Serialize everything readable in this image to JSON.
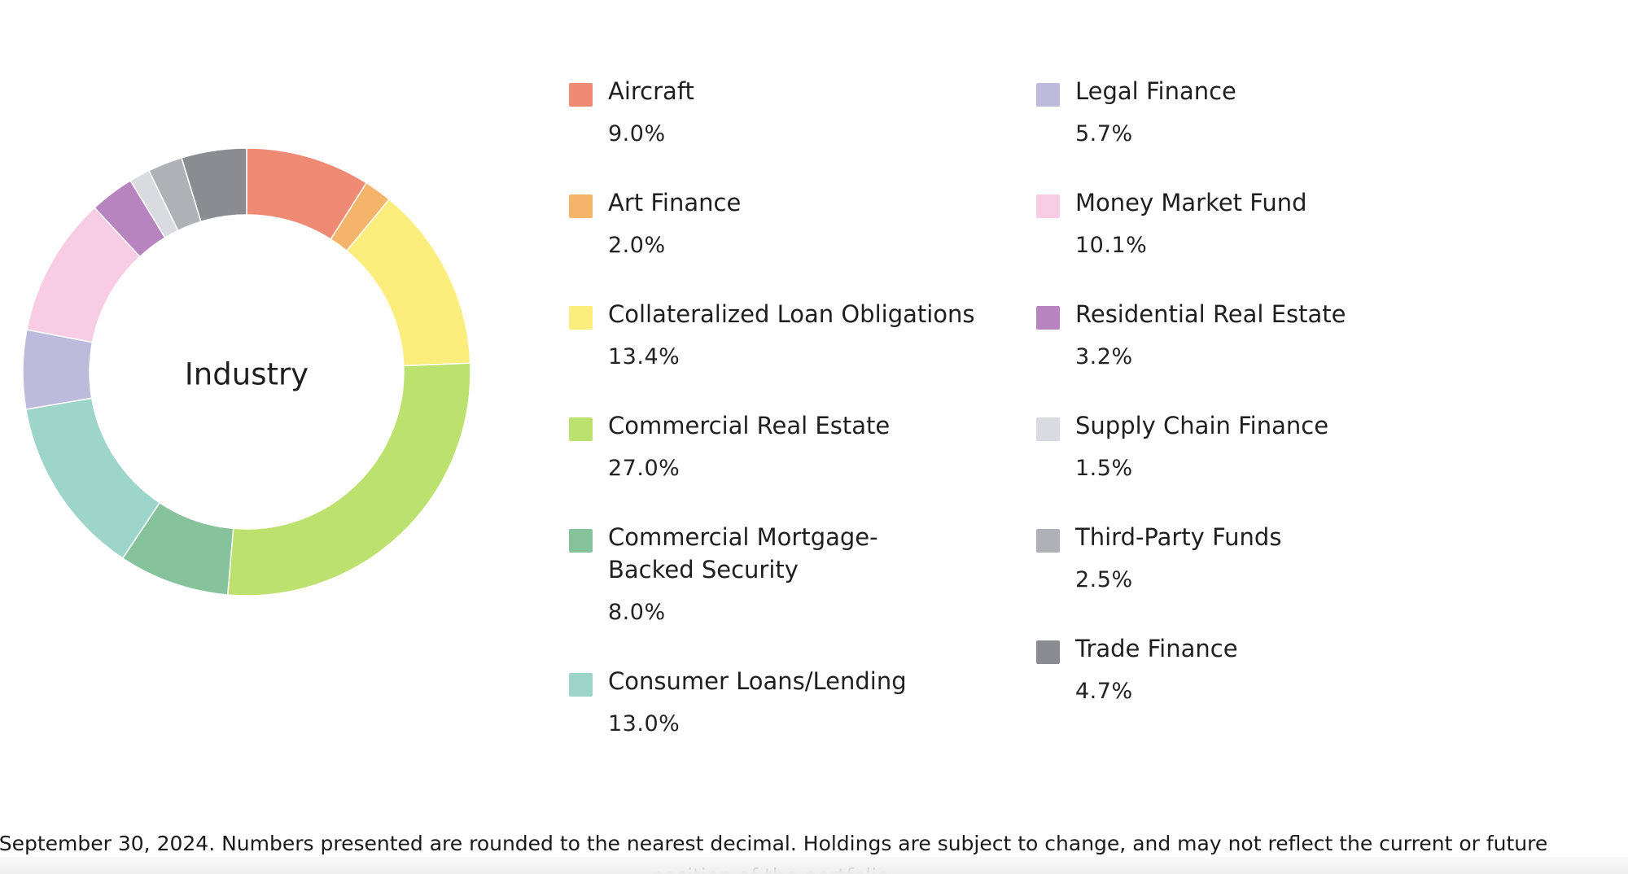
{
  "chart_data": {
    "type": "pie",
    "title": "Industry",
    "categories": [
      "Aircraft",
      "Art Finance",
      "Collateralized Loan Obligations",
      "Commercial Real Estate",
      "Commercial Mortgage-\nBacked Security",
      "Consumer Loans/Lending",
      "Legal Finance",
      "Money Market Fund",
      "Residential Real Estate",
      "Supply Chain Finance",
      "Third-Party Funds",
      "Trade Finance"
    ],
    "values": [
      9.0,
      2.0,
      13.4,
      27.0,
      8.0,
      13.0,
      5.7,
      10.1,
      3.2,
      1.5,
      2.5,
      4.7
    ],
    "value_labels": [
      "9.0%",
      "2.0%",
      "13.4%",
      "27.0%",
      "8.0%",
      "13.0%",
      "5.7%",
      "10.1%",
      "3.2%",
      "1.5%",
      "2.5%",
      "4.7%"
    ],
    "colors": [
      "#ef8a74",
      "#f4b56a",
      "#fbee7c",
      "#bde16e",
      "#86c39d",
      "#9dd5cb",
      "#bdbadc",
      "#f7cce4",
      "#b784bf",
      "#d9dbe0",
      "#b0b1b6",
      "#8a8c92"
    ],
    "slice_order": [
      0,
      1,
      2,
      3,
      4,
      5,
      6,
      7,
      8,
      9,
      10,
      11
    ],
    "legend_columns": [
      [
        0,
        1,
        2,
        3,
        4,
        5
      ],
      [
        6,
        7,
        8,
        9,
        10,
        11
      ]
    ],
    "legend": "right"
  },
  "footnote": "September 30, 2024. Numbers presented are rounded to the nearest decimal. Holdings are subject to change, and may not reflect the current or future position of the portfolio."
}
